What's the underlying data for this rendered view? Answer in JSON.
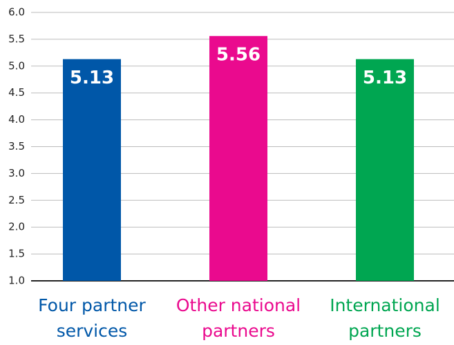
{
  "chart_data": {
    "type": "bar",
    "categories": [
      "Four partner services",
      "Other national partners",
      "International partners"
    ],
    "values": [
      5.13,
      5.56,
      5.13
    ],
    "colors": [
      "#0057a8",
      "#ea0a8e",
      "#00a651"
    ],
    "ylim": [
      1,
      6
    ],
    "yticks": [
      {
        "value": 1,
        "label": "1.0"
      },
      1.5,
      {
        "value": 2,
        "label": "2.0"
      },
      2.5,
      {
        "value": 3,
        "label": "3.0"
      },
      3.5,
      {
        "value": 4,
        "label": "4.0"
      },
      4.5,
      {
        "value": 5,
        "label": "5.0"
      },
      5.5,
      {
        "value": 6,
        "label": "6.0"
      }
    ],
    "grid": true
  }
}
